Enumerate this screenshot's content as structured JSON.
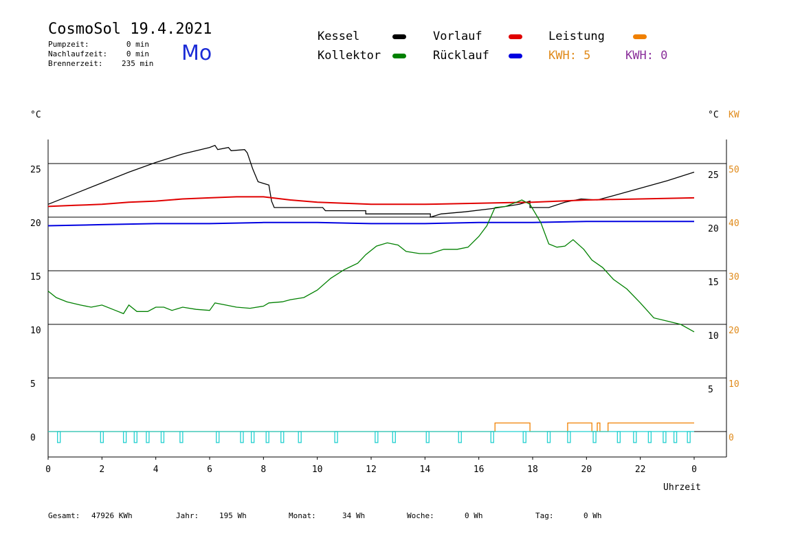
{
  "header": {
    "title": "CosmoSol 19.4.2021",
    "weekday": "Mo",
    "stats": [
      {
        "label": "Pumpzeit:",
        "value": "0 min"
      },
      {
        "label": "Nachlaufzeit:",
        "value": "0 min"
      },
      {
        "label": "Brennerzeit:",
        "value": "235 min"
      }
    ]
  },
  "legend": {
    "items": [
      {
        "label": "Kessel",
        "color": "#000000"
      },
      {
        "label": "Vorlauf",
        "color": "#e00000"
      },
      {
        "label": "Leistung",
        "color": "#f08000"
      },
      {
        "label": "Kollektor",
        "color": "#008000"
      },
      {
        "label": "Rücklauf",
        "color": "#0000e0"
      }
    ],
    "kwh_orange": "KWH: 5",
    "kwh_purple": "KWH: 0",
    "kwh_orange_color": "#e08a1a",
    "kwh_purple_color": "#8a2f9a"
  },
  "axes": {
    "left_unit": "°C",
    "right_unit": "°C",
    "right_unit_kw": "KW",
    "x_label": "Uhrzeit",
    "right_kw_color": "#e08a1a"
  },
  "footer": {
    "gesamt_label": "Gesamt:",
    "gesamt_value": "47926 KWh",
    "jahr_label": "Jahr:",
    "jahr_value": "195 Wh",
    "monat_label": "Monat:",
    "monat_value": "34 Wh",
    "woche_label": "Woche:",
    "woche_value": "0 Wh",
    "tag_label": "Tag:",
    "tag_value": "0 Wh"
  },
  "chart_data": {
    "type": "line",
    "title": "CosmoSol 19.4.2021",
    "xlabel": "Uhrzeit",
    "ylabel": "°C",
    "xlim": [
      0,
      24
    ],
    "ylim": [
      -2,
      27
    ],
    "grid": true,
    "x_ticks": [
      "0",
      "2",
      "4",
      "6",
      "8",
      "10",
      "12",
      "14",
      "16",
      "18",
      "20",
      "22",
      "0"
    ],
    "y_left_ticks": [
      "0",
      "5",
      "10",
      "15",
      "20",
      "25"
    ],
    "y_right_ticks_c": [
      "5",
      "10",
      "15",
      "20",
      "25"
    ],
    "y_right_ticks_kw": [
      "0",
      "10",
      "20",
      "30",
      "40",
      "50"
    ],
    "series": [
      {
        "name": "Kessel",
        "color": "#000000",
        "points": [
          [
            0,
            21.2
          ],
          [
            1,
            22.2
          ],
          [
            2,
            23.2
          ],
          [
            3,
            24.2
          ],
          [
            4,
            25.1
          ],
          [
            5,
            25.9
          ],
          [
            6,
            26.5
          ],
          [
            6.2,
            26.7
          ],
          [
            6.3,
            26.3
          ],
          [
            6.7,
            26.5
          ],
          [
            6.8,
            26.2
          ],
          [
            7.3,
            26.3
          ],
          [
            7.4,
            26.0
          ],
          [
            7.6,
            24.5
          ],
          [
            7.8,
            23.3
          ],
          [
            8.2,
            23.0
          ],
          [
            8.3,
            21.5
          ],
          [
            8.4,
            20.9
          ],
          [
            10.2,
            20.9
          ],
          [
            10.3,
            20.6
          ],
          [
            11.8,
            20.6
          ],
          [
            11.8,
            20.3
          ],
          [
            14.2,
            20.3
          ],
          [
            14.2,
            20.0
          ],
          [
            14.6,
            20.3
          ],
          [
            15.5,
            20.5
          ],
          [
            16.5,
            20.8
          ],
          [
            17.5,
            21.2
          ],
          [
            17.9,
            21.5
          ],
          [
            17.9,
            20.9
          ],
          [
            18.6,
            20.9
          ],
          [
            19.2,
            21.4
          ],
          [
            19.8,
            21.7
          ],
          [
            20.4,
            21.6
          ],
          [
            21.0,
            22.0
          ],
          [
            22.0,
            22.7
          ],
          [
            23.0,
            23.4
          ],
          [
            24,
            24.2
          ]
        ]
      },
      {
        "name": "Vorlauf",
        "color": "#e00000",
        "points": [
          [
            0,
            21.0
          ],
          [
            1,
            21.1
          ],
          [
            2,
            21.2
          ],
          [
            3,
            21.4
          ],
          [
            4,
            21.5
          ],
          [
            5,
            21.7
          ],
          [
            6,
            21.8
          ],
          [
            7,
            21.9
          ],
          [
            8,
            21.9
          ],
          [
            9,
            21.6
          ],
          [
            10,
            21.4
          ],
          [
            11,
            21.3
          ],
          [
            12,
            21.2
          ],
          [
            14,
            21.2
          ],
          [
            16,
            21.3
          ],
          [
            18,
            21.4
          ],
          [
            20,
            21.6
          ],
          [
            22,
            21.7
          ],
          [
            24,
            21.8
          ]
        ]
      },
      {
        "name": "Rücklauf",
        "color": "#0000e0",
        "points": [
          [
            0,
            19.2
          ],
          [
            2,
            19.3
          ],
          [
            4,
            19.4
          ],
          [
            6,
            19.4
          ],
          [
            8,
            19.5
          ],
          [
            10,
            19.5
          ],
          [
            12,
            19.4
          ],
          [
            14,
            19.4
          ],
          [
            16,
            19.5
          ],
          [
            18,
            19.5
          ],
          [
            20,
            19.6
          ],
          [
            22,
            19.6
          ],
          [
            24,
            19.6
          ]
        ]
      },
      {
        "name": "Kollektor",
        "color": "#008000",
        "points": [
          [
            0,
            13.1
          ],
          [
            0.3,
            12.5
          ],
          [
            0.7,
            12.1
          ],
          [
            1.2,
            11.8
          ],
          [
            1.6,
            11.6
          ],
          [
            2.0,
            11.8
          ],
          [
            2.5,
            11.3
          ],
          [
            2.8,
            11.0
          ],
          [
            3.0,
            11.8
          ],
          [
            3.3,
            11.2
          ],
          [
            3.7,
            11.2
          ],
          [
            4.0,
            11.6
          ],
          [
            4.3,
            11.6
          ],
          [
            4.6,
            11.3
          ],
          [
            5.0,
            11.6
          ],
          [
            5.5,
            11.4
          ],
          [
            6.0,
            11.3
          ],
          [
            6.2,
            12.0
          ],
          [
            6.6,
            11.8
          ],
          [
            7.0,
            11.6
          ],
          [
            7.5,
            11.5
          ],
          [
            8.0,
            11.7
          ],
          [
            8.2,
            12.0
          ],
          [
            8.7,
            12.1
          ],
          [
            9.0,
            12.3
          ],
          [
            9.5,
            12.5
          ],
          [
            10.0,
            13.2
          ],
          [
            10.5,
            14.3
          ],
          [
            11.0,
            15.1
          ],
          [
            11.5,
            15.7
          ],
          [
            11.8,
            16.5
          ],
          [
            12.2,
            17.3
          ],
          [
            12.6,
            17.6
          ],
          [
            13.0,
            17.4
          ],
          [
            13.3,
            16.8
          ],
          [
            13.8,
            16.6
          ],
          [
            14.2,
            16.6
          ],
          [
            14.7,
            17.0
          ],
          [
            15.2,
            17.0
          ],
          [
            15.6,
            17.2
          ],
          [
            16.0,
            18.2
          ],
          [
            16.3,
            19.2
          ],
          [
            16.6,
            20.9
          ],
          [
            17.0,
            21.0
          ],
          [
            17.4,
            21.4
          ],
          [
            17.6,
            21.6
          ],
          [
            17.9,
            21.2
          ],
          [
            18.3,
            19.5
          ],
          [
            18.6,
            17.5
          ],
          [
            18.9,
            17.2
          ],
          [
            19.2,
            17.3
          ],
          [
            19.5,
            17.9
          ],
          [
            19.9,
            17.0
          ],
          [
            20.2,
            16.0
          ],
          [
            20.6,
            15.3
          ],
          [
            21.0,
            14.2
          ],
          [
            21.5,
            13.3
          ],
          [
            22.0,
            12.0
          ],
          [
            22.5,
            10.6
          ],
          [
            23.0,
            10.3
          ],
          [
            23.5,
            10.0
          ],
          [
            24,
            9.3
          ]
        ]
      }
    ],
    "leistung_kw": [
      [
        0,
        0
      ],
      [
        16.6,
        0
      ],
      [
        16.6,
        1.6
      ],
      [
        17.9,
        1.6
      ],
      [
        17.9,
        0
      ],
      [
        19.3,
        0
      ],
      [
        19.3,
        1.6
      ],
      [
        20.2,
        1.6
      ],
      [
        20.2,
        0
      ],
      [
        20.4,
        0
      ],
      [
        20.4,
        1.6
      ],
      [
        20.5,
        1.6
      ],
      [
        20.5,
        0
      ],
      [
        20.8,
        0
      ],
      [
        20.8,
        1.6
      ],
      [
        24,
        1.6
      ]
    ],
    "pump_pulses": [
      0.4,
      2.0,
      2.85,
      3.25,
      3.7,
      4.25,
      4.95,
      6.3,
      7.2,
      7.6,
      8.15,
      8.7,
      9.35,
      10.7,
      12.2,
      12.85,
      14.1,
      15.3,
      16.5,
      17.7,
      18.6,
      19.35,
      20.3,
      21.2,
      21.8,
      22.35,
      22.9,
      23.3,
      23.8
    ]
  }
}
